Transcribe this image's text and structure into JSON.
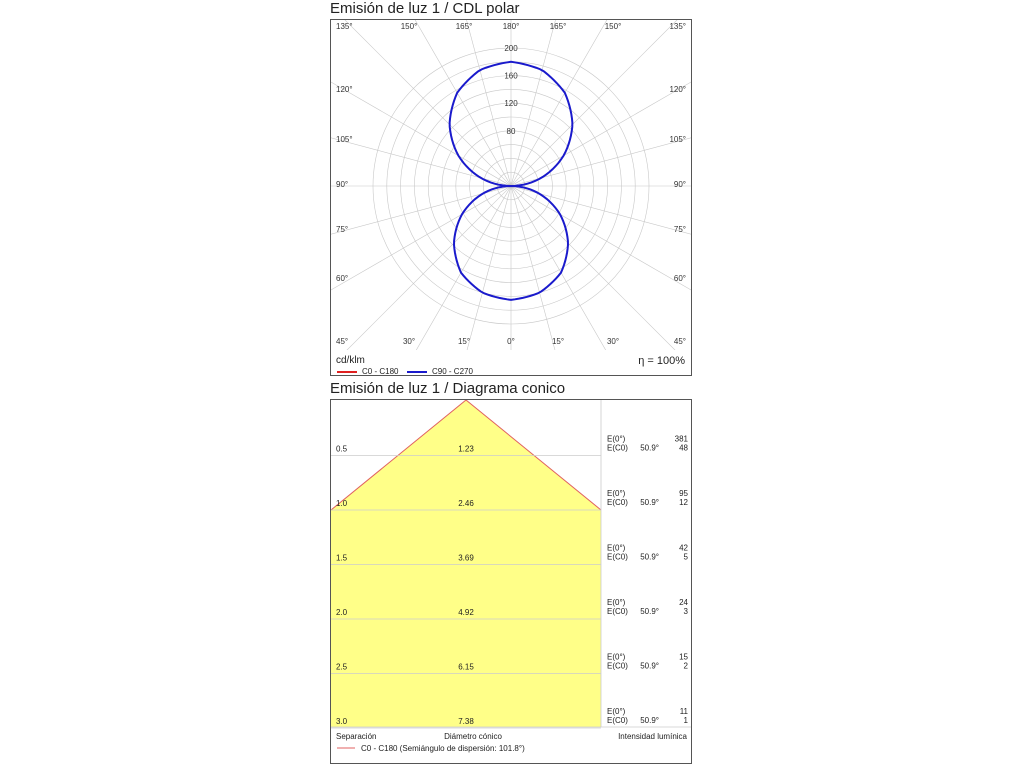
{
  "polar": {
    "title": "Emisión de luz 1 / CDL polar",
    "unit_label": "cd/klm",
    "efficiency": "η = 100%",
    "legend": [
      {
        "label": "C0 - C180",
        "color": "#e02020"
      },
      {
        "label": "C90 - C270",
        "color": "#1a1acc"
      }
    ]
  },
  "cone": {
    "title": "Emisión de luz 1 / Diagrama conico",
    "separation_label": "Separación",
    "diameter_label": "Diámetro cónico",
    "intensity_label": "Intensidad lumínica",
    "legend": {
      "label": "C0 - C180 (Semiángulo de dispersión: 101.8°)",
      "color": "#e06060"
    },
    "fill_color": "#ffff88",
    "rows": [
      {
        "height": "0.5",
        "diameter": "1.23",
        "e0_label": "E(0°)",
        "ec0_label": "E(C0)",
        "angle": "50.9°",
        "e0": "381",
        "ec0": "48"
      },
      {
        "height": "1.0",
        "diameter": "2.46",
        "e0_label": "E(0°)",
        "ec0_label": "E(C0)",
        "angle": "50.9°",
        "e0": "95",
        "ec0": "12"
      },
      {
        "height": "1.5",
        "diameter": "3.69",
        "e0_label": "E(0°)",
        "ec0_label": "E(C0)",
        "angle": "50.9°",
        "e0": "42",
        "ec0": "5"
      },
      {
        "height": "2.0",
        "diameter": "4.92",
        "e0_label": "E(0°)",
        "ec0_label": "E(C0)",
        "angle": "50.9°",
        "e0": "24",
        "ec0": "3"
      },
      {
        "height": "2.5",
        "diameter": "6.15",
        "e0_label": "E(0°)",
        "ec0_label": "E(C0)",
        "angle": "50.9°",
        "e0": "15",
        "ec0": "2"
      },
      {
        "height": "3.0",
        "diameter": "7.38",
        "e0_label": "E(0°)",
        "ec0_label": "E(C0)",
        "angle": "50.9°",
        "e0": "11",
        "ec0": "1"
      }
    ]
  },
  "chart_data": [
    {
      "type": "polar",
      "title": "Emisión de luz 1 / CDL polar",
      "unit": "cd/klm",
      "radial_ticks": [
        "80",
        "120",
        "160",
        "200"
      ],
      "rmax": 200,
      "angle_labels_left": [
        "135°",
        "120°",
        "105°",
        "90°",
        "75°",
        "60°",
        "45°"
      ],
      "angle_labels_right": [
        "135°",
        "120°",
        "105°",
        "90°",
        "75°",
        "60°",
        "45°"
      ],
      "angle_labels_top": [
        "150°",
        "165°",
        "180°",
        "165°",
        "150°"
      ],
      "angle_labels_bottom": [
        "30°",
        "15°",
        "0°",
        "15°",
        "30°"
      ],
      "series": [
        {
          "name": "C90 - C270",
          "color": "#1a1acc",
          "gamma": [
            0,
            15,
            30,
            45,
            60,
            75,
            90,
            105,
            120,
            135,
            150,
            165,
            180
          ],
          "values": [
            165,
            160,
            145,
            117,
            82,
            42,
            0,
            45,
            88,
            126,
            156,
            174,
            180
          ]
        }
      ]
    },
    {
      "type": "cone",
      "title": "Emisión de luz 1 / Diagrama conico",
      "half_angle": 50.9,
      "heights": [
        0.5,
        1.0,
        1.5,
        2.0,
        2.5,
        3.0
      ],
      "diameters": [
        1.23,
        2.46,
        3.69,
        4.92,
        6.15,
        7.38
      ],
      "e0": [
        381,
        95,
        42,
        24,
        15,
        11
      ],
      "ec0": [
        48,
        12,
        5,
        3,
        2,
        1
      ]
    }
  ]
}
